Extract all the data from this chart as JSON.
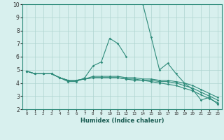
{
  "x": [
    0,
    1,
    2,
    3,
    4,
    5,
    6,
    7,
    8,
    9,
    10,
    11,
    12,
    13,
    14,
    15,
    16,
    17,
    18,
    19,
    20,
    21,
    22,
    23
  ],
  "series1": [
    4.9,
    4.7,
    4.7,
    4.7,
    4.4,
    4.1,
    4.1,
    4.4,
    5.3,
    5.6,
    7.4,
    7.0,
    6.0,
    null,
    10.0,
    7.5,
    5.0,
    5.5,
    4.7,
    4.0,
    3.5,
    2.7,
    2.9,
    2.4
  ],
  "series2": [
    4.9,
    4.7,
    4.7,
    4.7,
    4.4,
    4.2,
    4.2,
    4.3,
    4.5,
    4.5,
    4.5,
    4.5,
    4.4,
    4.4,
    4.3,
    4.3,
    4.2,
    4.2,
    4.1,
    4.0,
    3.8,
    3.5,
    3.2,
    2.9
  ],
  "series3": [
    4.9,
    4.7,
    4.7,
    4.7,
    4.4,
    4.2,
    4.2,
    4.3,
    4.4,
    4.4,
    4.4,
    4.4,
    4.3,
    4.3,
    4.2,
    4.2,
    4.1,
    4.1,
    4.0,
    3.8,
    3.6,
    3.3,
    3.0,
    2.7
  ],
  "series4": [
    4.9,
    4.7,
    4.7,
    4.7,
    4.4,
    4.2,
    4.2,
    4.3,
    4.4,
    4.4,
    4.4,
    4.4,
    4.3,
    4.2,
    4.2,
    4.1,
    4.0,
    3.9,
    3.8,
    3.6,
    3.4,
    3.1,
    2.8,
    2.5
  ],
  "line_color": "#2e8b7a",
  "bg_color": "#d8f0ee",
  "grid_color": "#aed4cf",
  "xlabel": "Humidex (Indice chaleur)",
  "ylim": [
    2,
    10
  ],
  "xlim": [
    -0.5,
    23.5
  ]
}
